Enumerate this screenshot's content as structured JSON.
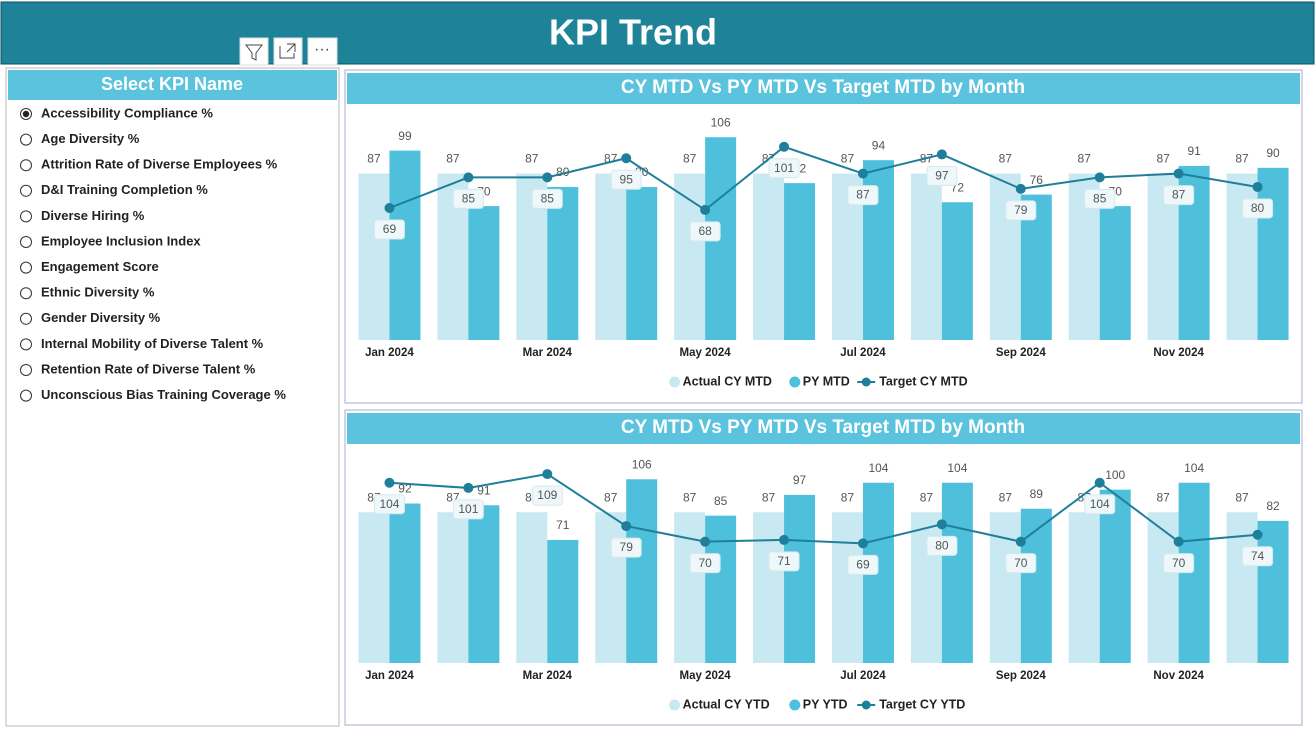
{
  "header": {
    "title": "KPI Trend"
  },
  "slicer": {
    "title": "Select KPI Name",
    "selected_index": 0,
    "items": [
      "Accessibility Compliance %",
      "Age Diversity %",
      "Attrition Rate of Diverse Employees %",
      "D&I Training Completion %",
      "Diverse Hiring %",
      "Employee Inclusion Index",
      "Engagement Score",
      "Ethnic Diversity %",
      "Gender Diversity %",
      "Internal Mobility of Diverse Talent %",
      "Retention Rate of Diverse Talent %",
      "Unconscious Bias Training Coverage %"
    ]
  },
  "chart_data": [
    {
      "type": "combo",
      "title": "CY MTD Vs PY MTD Vs Target MTD by Month",
      "categories": [
        "Jan 2024",
        null,
        "Mar 2024",
        null,
        "May 2024",
        null,
        "Jul 2024",
        null,
        "Sep 2024",
        null,
        "Nov 2024",
        null
      ],
      "ylim": [
        0,
        115
      ],
      "series": [
        {
          "name": "Actual CY MTD",
          "kind": "bar",
          "color": "#c9e9f2",
          "values": [
            87,
            87,
            87,
            87,
            87,
            87,
            87,
            87,
            87,
            87,
            87,
            87
          ]
        },
        {
          "name": "PY MTD",
          "kind": "bar",
          "color": "#4fc0dc",
          "values": [
            99,
            70,
            80,
            80,
            106,
            82,
            94,
            72,
            76,
            70,
            91,
            90
          ]
        },
        {
          "name": "Target CY MTD",
          "kind": "line",
          "color": "#1f7f9a",
          "values": [
            69,
            85,
            85,
            95,
            68,
            101,
            87,
            97,
            79,
            85,
            87,
            80
          ]
        }
      ]
    },
    {
      "type": "combo",
      "title": "CY MTD Vs PY MTD Vs Target MTD by Month",
      "categories": [
        "Jan 2024",
        null,
        "Mar 2024",
        null,
        "May 2024",
        null,
        "Jul 2024",
        null,
        "Sep 2024",
        null,
        "Nov 2024",
        null
      ],
      "ylim": [
        0,
        120
      ],
      "series": [
        {
          "name": "Actual CY YTD",
          "kind": "bar",
          "color": "#c9e9f2",
          "values": [
            87,
            87,
            87,
            87,
            87,
            87,
            87,
            87,
            87,
            87,
            87,
            87
          ]
        },
        {
          "name": "PY YTD",
          "kind": "bar",
          "color": "#4fc0dc",
          "values": [
            92,
            91,
            71,
            106,
            85,
            97,
            104,
            104,
            89,
            100,
            104,
            82
          ]
        },
        {
          "name": "Target CY YTD",
          "kind": "line",
          "color": "#1f7f9a",
          "values": [
            104,
            101,
            109,
            79,
            70,
            71,
            69,
            80,
            70,
            104,
            70,
            74
          ]
        }
      ]
    }
  ]
}
